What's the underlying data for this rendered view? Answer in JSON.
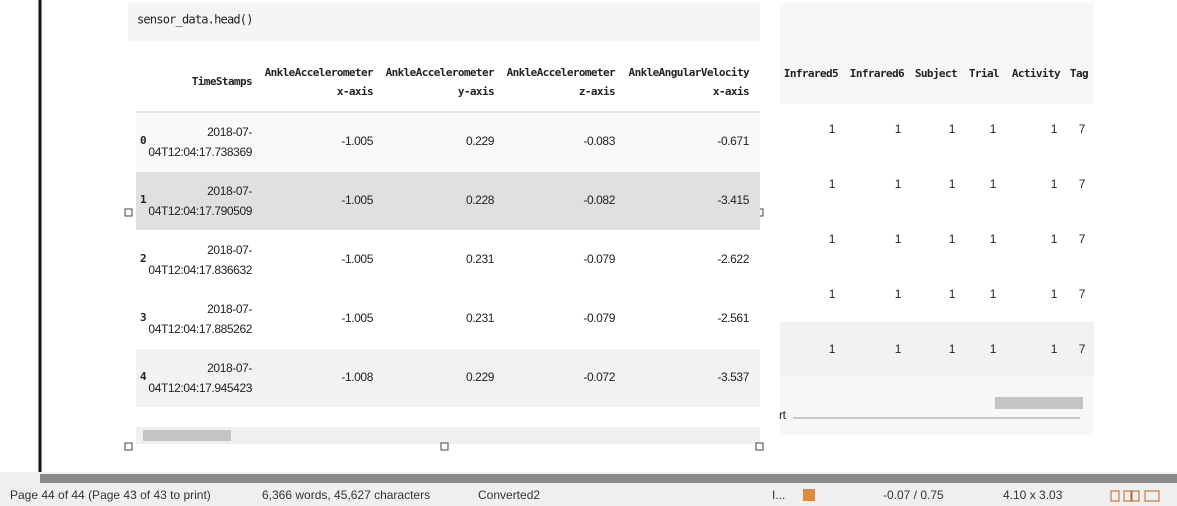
{
  "code": "sensor_data.head()",
  "left_table": {
    "headers": [
      [
        "TimeStamps"
      ],
      [
        "AnkleAccelerometer",
        "x-axis"
      ],
      [
        "AnkleAccelerometer",
        "y-axis"
      ],
      [
        "AnkleAccelerometer",
        "z-axis"
      ],
      [
        "AnkleAngularVelocity",
        "x-axis"
      ]
    ],
    "rows": [
      {
        "index": "0",
        "timestamp": [
          "2018-07-",
          "04T12:04:17.738369"
        ],
        "values": [
          "-1.005",
          "0.229",
          "-0.083",
          "-0.671"
        ]
      },
      {
        "index": "1",
        "timestamp": [
          "2018-07-",
          "04T12:04:17.790509"
        ],
        "values": [
          "-1.005",
          "0.228",
          "-0.082",
          "-3.415"
        ]
      },
      {
        "index": "2",
        "timestamp": [
          "2018-07-",
          "04T12:04:17.836632"
        ],
        "values": [
          "-1.005",
          "0.231",
          "-0.079",
          "-2.622"
        ]
      },
      {
        "index": "3",
        "timestamp": [
          "2018-07-",
          "04T12:04:17.885262"
        ],
        "values": [
          "-1.005",
          "0.231",
          "-0.079",
          "-2.561"
        ]
      },
      {
        "index": "4",
        "timestamp": [
          "2018-07-",
          "04T12:04:17.945423"
        ],
        "values": [
          "-1.008",
          "0.229",
          "-0.072",
          "-3.537"
        ]
      }
    ]
  },
  "right_table": {
    "headers": [
      "Infrared5",
      "Infrared6",
      "Subject",
      "Trial",
      "Activity",
      "Tag"
    ],
    "rows": [
      [
        "1",
        "1",
        "1",
        "1",
        "1",
        "7"
      ],
      [
        "1",
        "1",
        "1",
        "1",
        "1",
        "7"
      ],
      [
        "1",
        "1",
        "1",
        "1",
        "1",
        "7"
      ],
      [
        "1",
        "1",
        "1",
        "1",
        "1",
        "7"
      ],
      [
        "1",
        "1",
        "1",
        "1",
        "1",
        "7"
      ]
    ],
    "fragment": "rt"
  },
  "status_bar": {
    "page": "Page 44 of 44 (Page 43 of 43 to print)",
    "words": "6,366 words, 45,627 characters",
    "style": "Converted2",
    "mode": "I...",
    "position": "-0.07 / 0.75",
    "size": "4.10 x 3.03"
  }
}
